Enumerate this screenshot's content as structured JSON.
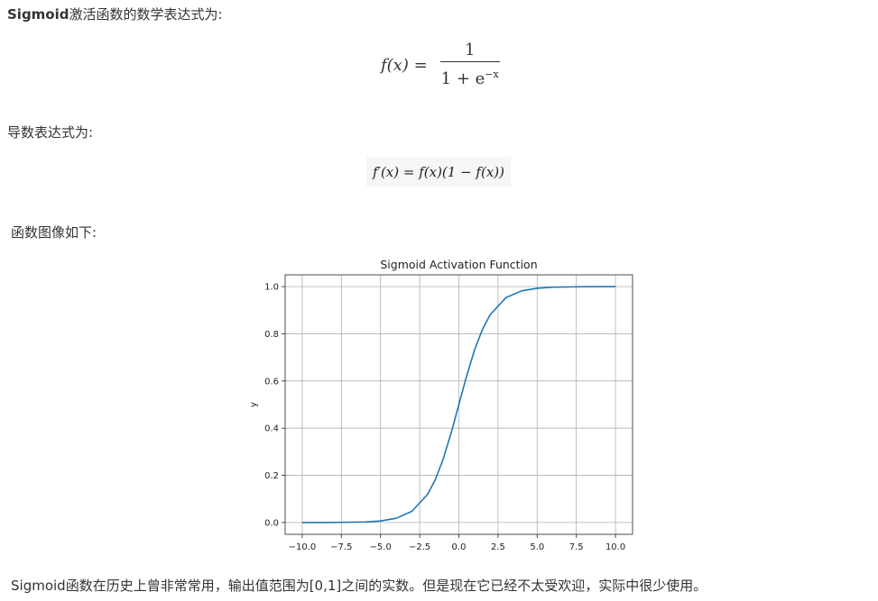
{
  "intro": {
    "term": "Sigmoid",
    "text": "激活函数的数学表达式为:"
  },
  "formula": {
    "lhs": "f(x) =",
    "numerator": "1",
    "denominator_base": "1 + e",
    "denominator_exp": "−x"
  },
  "derivative": {
    "label": "导数表达式为:",
    "expression": "f′(x) = f(x)(1 − f(x))"
  },
  "graph": {
    "label": "函数图像如下:"
  },
  "conclusion": "Sigmoid函数在历史上曾非常常用，输出值范围为[0,1]之间的实数。但是现在它已经不太受欢迎，实际中很少使用。",
  "chart_data": {
    "type": "line",
    "title": "Sigmoid Activation Function",
    "xlabel": "",
    "ylabel": "y",
    "xlim": [
      -10,
      10
    ],
    "ylim": [
      0,
      1
    ],
    "xticks": [
      "−10.0",
      "−7.5",
      "−5.0",
      "−2.5",
      "0.0",
      "2.5",
      "5.0",
      "7.5",
      "10.0"
    ],
    "xtick_values": [
      -10,
      -7.5,
      -5,
      -2.5,
      0,
      2.5,
      5,
      7.5,
      10
    ],
    "yticks": [
      "0.0",
      "0.2",
      "0.4",
      "0.6",
      "0.8",
      "1.0"
    ],
    "ytick_values": [
      0,
      0.2,
      0.4,
      0.6,
      0.8,
      1.0
    ],
    "grid": true,
    "series": [
      {
        "color": "#1f77b4",
        "x": [
          -10,
          -8,
          -6,
          -5,
          -4,
          -3,
          -2,
          -1.5,
          -1,
          -0.5,
          0,
          0.5,
          1,
          1.5,
          2,
          3,
          4,
          5,
          6,
          8,
          10
        ],
        "y": [
          4.54e-05,
          0.000335,
          0.00247,
          0.00669,
          0.018,
          0.0474,
          0.119,
          0.182,
          0.269,
          0.378,
          0.5,
          0.622,
          0.731,
          0.818,
          0.881,
          0.953,
          0.982,
          0.993,
          0.9975,
          0.99966,
          0.99995
        ]
      }
    ]
  }
}
